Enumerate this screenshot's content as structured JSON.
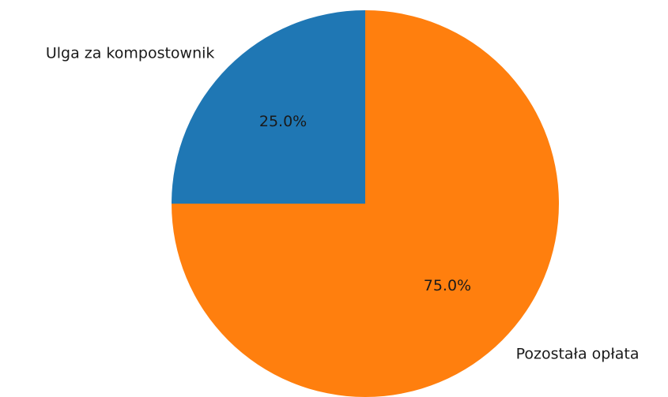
{
  "chart_data": {
    "type": "pie",
    "slices": [
      {
        "label": "Ulga za kompostownik",
        "value": 25.0,
        "pct_label": "25.0%",
        "color": "#1f77b4"
      },
      {
        "label": "Pozostała opłata",
        "value": 75.0,
        "pct_label": "75.0%",
        "color": "#ff7f0e"
      }
    ],
    "start_angle_deg": 90,
    "direction": "counterclockwise",
    "legend": "none"
  }
}
